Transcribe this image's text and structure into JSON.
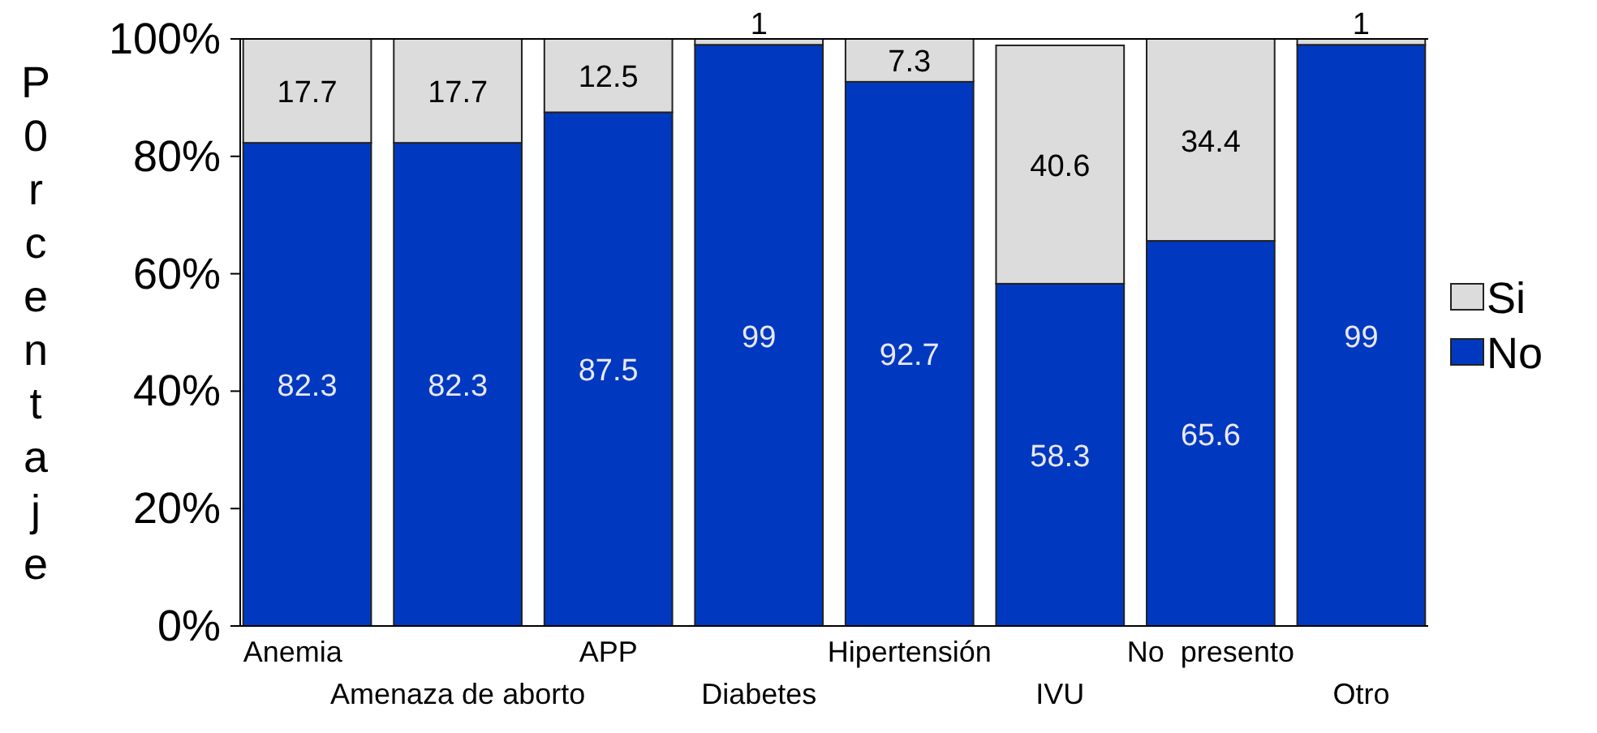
{
  "chart_data": {
    "type": "bar",
    "stacked": true,
    "ylabel": "P0rcentaje",
    "categories": [
      "Anemia",
      "Amenaza de aborto",
      "APP",
      "Diabetes",
      "Hipertensión",
      "IVU",
      "No  presento",
      "Otro"
    ],
    "series": [
      {
        "name": "No",
        "color": "#0039bf",
        "values": [
          82.3,
          82.3,
          87.5,
          99,
          92.7,
          58.3,
          65.6,
          99
        ]
      },
      {
        "name": "Si",
        "color": "#dcdcdc",
        "values": [
          17.7,
          17.7,
          12.5,
          1,
          7.3,
          40.6,
          34.4,
          1
        ]
      }
    ],
    "ylim": [
      0,
      100
    ],
    "yticks": [
      {
        "value": 0,
        "label": "0%"
      },
      {
        "value": 20,
        "label": "20%"
      },
      {
        "value": 40,
        "label": "40%"
      },
      {
        "value": 60,
        "label": "60%"
      },
      {
        "value": 80,
        "label": "80%"
      },
      {
        "value": 100,
        "label": "100%"
      }
    ],
    "data_labels": true,
    "legend": "right",
    "grid": false
  }
}
